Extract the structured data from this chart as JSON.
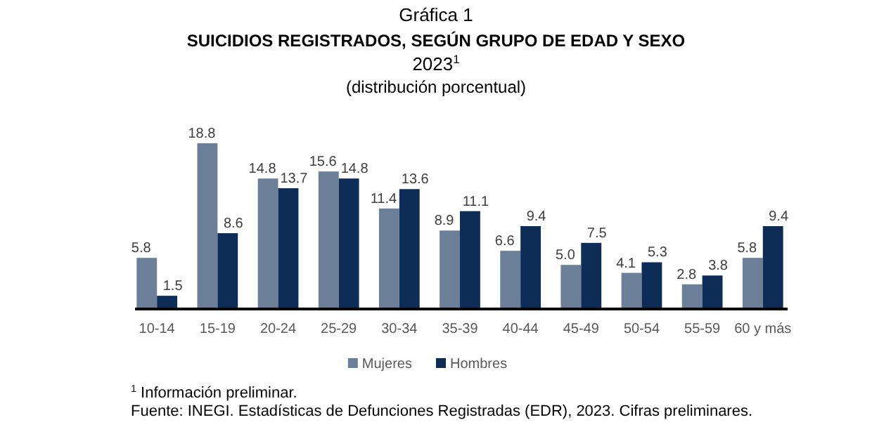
{
  "chart_data": {
    "type": "bar",
    "title": "Gráfica 1",
    "subtitle": "SUICIDIOS REGISTRADOS, SEGÚN GRUPO DE EDAD Y SEXO",
    "annotations": [
      "2023$^{1}$",
      "(distribución porcentual)",
      "$^{1}$ Información preliminar.",
      "Fuente: INEGI. Estadísticas de Defunciones Registradas (EDR), 2023. Cifras preliminares."
    ],
    "categories": [
      "10-14",
      "15-19",
      "20-24",
      "25-29",
      "30-34",
      "35-39",
      "40-44",
      "45-49",
      "50-54",
      "55-59",
      "60 y más"
    ],
    "series": [
      {
        "name": "Mujeres",
        "color": "#6b7f99",
        "values": [
          5.8,
          18.8,
          14.8,
          15.6,
          11.4,
          8.9,
          6.6,
          5.0,
          4.1,
          2.8,
          5.8
        ],
        "value_labels": [
          "5.8",
          "18.8",
          "14.8",
          "15.6",
          "11.4",
          "8.9",
          "6.6",
          "5.0",
          "4.1",
          "2.8",
          "5.8"
        ]
      },
      {
        "name": "Hombres",
        "color": "#0d2d57",
        "values": [
          1.5,
          8.6,
          13.7,
          14.8,
          13.6,
          11.1,
          9.4,
          7.5,
          5.3,
          3.8,
          9.4
        ],
        "value_labels": [
          "1.5",
          "8.6",
          "13.7",
          "14.8",
          "13.6",
          "11.1",
          "9.4",
          "7.5",
          "5.3",
          "3.8",
          "9.4"
        ]
      }
    ],
    "legend": "bottom"
  }
}
